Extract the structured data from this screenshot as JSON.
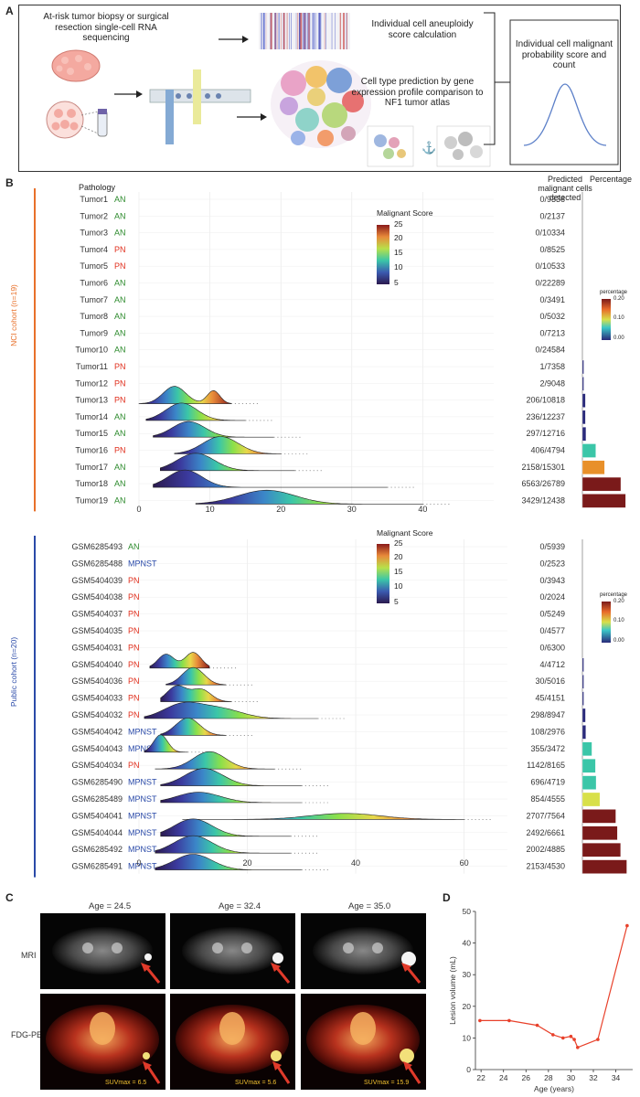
{
  "panels": {
    "a": "A",
    "b": "B",
    "c": "C",
    "d": "D"
  },
  "panelA": {
    "input_text": "At-risk tumor biopsy or surgical resection single-cell RNA sequencing",
    "aneuploidy_text": "Individual cell aneuploidy score calculation",
    "celltype_text": "Cell type prediction by gene expression profile comparison to NF1 tumor atlas",
    "output_text": "Individual cell malignant probability score and count"
  },
  "panelB": {
    "pathology_header": "Pathology",
    "predicted_header": "Predicted malignant cells detected",
    "percentage_header": "Percentage",
    "colorbar_title": "Malignant Score",
    "colorbar_ticks": [
      "25",
      "20",
      "15",
      "10",
      "5"
    ],
    "pct_legend_title": "percentage",
    "pct_legend_ticks": [
      "0.20",
      "0.10",
      "0.00"
    ],
    "nci_cohort_label": "NCI cohort (n=19)",
    "public_cohort_label": "Public cohort (n=20)",
    "nci_xticks": [
      "0",
      "10",
      "20",
      "30",
      "40"
    ],
    "public_xticks": [
      "0",
      "20",
      "40",
      "60"
    ]
  },
  "chart_data": [
    {
      "type": "ridgeline",
      "title": "NCI cohort (n=19)",
      "xlim": [
        0,
        50
      ],
      "xticks": [
        0,
        10,
        20,
        30,
        40
      ],
      "rows": [
        {
          "name": "Tumor1",
          "pathology": "AN",
          "count": "0/9336",
          "percentage": 0,
          "peaks": []
        },
        {
          "name": "Tumor2",
          "pathology": "AN",
          "count": "0/2137",
          "percentage": 0,
          "peaks": []
        },
        {
          "name": "Tumor3",
          "pathology": "AN",
          "count": "0/10334",
          "percentage": 0,
          "peaks": []
        },
        {
          "name": "Tumor4",
          "pathology": "PN",
          "count": "0/8525",
          "percentage": 0,
          "peaks": []
        },
        {
          "name": "Tumor5",
          "pathology": "PN",
          "count": "0/10533",
          "percentage": 0,
          "peaks": []
        },
        {
          "name": "Tumor6",
          "pathology": "AN",
          "count": "0/22289",
          "percentage": 0,
          "peaks": []
        },
        {
          "name": "Tumor7",
          "pathology": "AN",
          "count": "0/3491",
          "percentage": 0,
          "peaks": []
        },
        {
          "name": "Tumor8",
          "pathology": "AN",
          "count": "0/5032",
          "percentage": 0,
          "peaks": []
        },
        {
          "name": "Tumor9",
          "pathology": "AN",
          "count": "0/7213",
          "percentage": 0,
          "peaks": []
        },
        {
          "name": "Tumor10",
          "pathology": "AN",
          "count": "0/24584",
          "percentage": 0,
          "peaks": []
        },
        {
          "name": "Tumor11",
          "pathology": "PN",
          "count": "1/7358",
          "percentage": 0.0001,
          "peaks": []
        },
        {
          "name": "Tumor12",
          "pathology": "PN",
          "count": "2/9048",
          "percentage": 0.0002,
          "peaks": []
        },
        {
          "name": "Tumor13",
          "pathology": "PN",
          "count": "206/10818",
          "percentage": 0.019,
          "peaks": [
            {
              "mu": 5,
              "sd": 1.6,
              "h": 1.0
            },
            {
              "mu": 10.5,
              "sd": 0.9,
              "h": 0.75
            }
          ],
          "span": [
            0,
            13
          ]
        },
        {
          "name": "Tumor14",
          "pathology": "AN",
          "count": "236/12237",
          "percentage": 0.019,
          "peaks": [
            {
              "mu": 6,
              "sd": 2.2,
              "h": 1.0
            }
          ],
          "span": [
            1,
            15
          ]
        },
        {
          "name": "Tumor15",
          "pathology": "AN",
          "count": "297/12716",
          "percentage": 0.023,
          "peaks": [
            {
              "mu": 7,
              "sd": 2.3,
              "h": 0.9
            }
          ],
          "span": [
            2,
            19
          ]
        },
        {
          "name": "Tumor16",
          "pathology": "PN",
          "count": "406/4794",
          "percentage": 0.085,
          "peaks": [
            {
              "mu": 11.5,
              "sd": 2.5,
              "h": 1.0
            }
          ],
          "span": [
            5,
            20
          ]
        },
        {
          "name": "Tumor17",
          "pathology": "AN",
          "count": "2158/15301",
          "percentage": 0.141,
          "peaks": [
            {
              "mu": 8,
              "sd": 2.6,
              "h": 1.0
            }
          ],
          "span": [
            3,
            22
          ]
        },
        {
          "name": "Tumor18",
          "pathology": "AN",
          "count": "6563/26789",
          "percentage": 0.245,
          "peaks": [
            {
              "mu": 6.5,
              "sd": 2.4,
              "h": 1.0
            }
          ],
          "span": [
            2,
            35
          ]
        },
        {
          "name": "Tumor19",
          "pathology": "AN",
          "count": "3429/12438",
          "percentage": 0.276,
          "peaks": [
            {
              "mu": 18,
              "sd": 4,
              "h": 0.8
            }
          ],
          "span": [
            8,
            40
          ]
        }
      ]
    },
    {
      "type": "ridgeline",
      "title": "Public cohort (n=20)",
      "xlim": [
        0,
        68
      ],
      "xticks": [
        0,
        20,
        40,
        60
      ],
      "rows": [
        {
          "name": "GSM6285493",
          "pathology": "AN",
          "count": "0/5939",
          "percentage": 0,
          "peaks": []
        },
        {
          "name": "GSM6285488",
          "pathology": "MPNST",
          "count": "0/2523",
          "percentage": 0,
          "peaks": []
        },
        {
          "name": "GSM5404039",
          "pathology": "PN",
          "count": "0/3943",
          "percentage": 0,
          "peaks": []
        },
        {
          "name": "GSM5404038",
          "pathology": "PN",
          "count": "0/2024",
          "percentage": 0,
          "peaks": []
        },
        {
          "name": "GSM5404037",
          "pathology": "PN",
          "count": "0/5249",
          "percentage": 0,
          "peaks": []
        },
        {
          "name": "GSM5404035",
          "pathology": "PN",
          "count": "0/4577",
          "percentage": 0,
          "peaks": []
        },
        {
          "name": "GSM5404031",
          "pathology": "PN",
          "count": "0/6300",
          "percentage": 0,
          "peaks": []
        },
        {
          "name": "GSM5404040",
          "pathology": "PN",
          "count": "4/4712",
          "percentage": 0.0008,
          "peaks": [
            {
              "mu": 5,
              "sd": 1.5,
              "h": 0.8
            },
            {
              "mu": 10,
              "sd": 1.5,
              "h": 0.9
            }
          ],
          "span": [
            2,
            13
          ]
        },
        {
          "name": "GSM5404036",
          "pathology": "PN",
          "count": "30/5016",
          "percentage": 0.006,
          "peaks": [
            {
              "mu": 10,
              "sd": 2.0,
              "h": 1.0
            }
          ],
          "span": [
            5,
            16
          ]
        },
        {
          "name": "GSM5404033",
          "pathology": "PN",
          "count": "45/4151",
          "percentage": 0.011,
          "peaks": [
            {
              "mu": 7,
              "sd": 1.8,
              "h": 0.9
            },
            {
              "mu": 11.5,
              "sd": 1.8,
              "h": 0.7
            }
          ],
          "span": [
            4,
            17
          ]
        },
        {
          "name": "GSM5404032",
          "pathology": "PN",
          "count": "298/8947",
          "percentage": 0.033,
          "peaks": [
            {
              "mu": 8,
              "sd": 3.5,
              "h": 0.8
            },
            {
              "mu": 15,
              "sd": 4,
              "h": 0.55
            }
          ],
          "span": [
            1,
            33
          ]
        },
        {
          "name": "GSM5404042",
          "pathology": "MPNST",
          "count": "108/2976",
          "percentage": 0.036,
          "peaks": [
            {
              "mu": 9,
              "sd": 2.2,
              "h": 1.0
            }
          ],
          "span": [
            4,
            16
          ]
        },
        {
          "name": "GSM5404043",
          "pathology": "MPNST",
          "count": "355/3472",
          "percentage": 0.102,
          "peaks": [
            {
              "mu": 4,
              "sd": 1.3,
              "h": 1.0
            }
          ],
          "span": [
            1,
            9
          ]
        },
        {
          "name": "GSM5404034",
          "pathology": "PN",
          "count": "1142/8165",
          "percentage": 0.14,
          "peaks": [
            {
              "mu": 13,
              "sd": 3.0,
              "h": 1.0
            }
          ],
          "span": [
            3,
            25
          ]
        },
        {
          "name": "GSM6285490",
          "pathology": "MPNST",
          "count": "696/4719",
          "percentage": 0.147,
          "peaks": [
            {
              "mu": 12,
              "sd": 3.5,
              "h": 1.0
            }
          ],
          "span": [
            4,
            30
          ]
        },
        {
          "name": "GSM6285489",
          "pathology": "MPNST",
          "count": "854/4555",
          "percentage": 0.187,
          "peaks": [
            {
              "mu": 11,
              "sd": 4,
              "h": 0.6
            }
          ],
          "span": [
            4,
            30
          ]
        },
        {
          "name": "GSM5404041",
          "pathology": "MPNST",
          "count": "2707/7564",
          "percentage": 0.358,
          "peaks": [
            {
              "mu": 38,
              "sd": 6.5,
              "h": 0.35
            }
          ],
          "span": [
            8,
            60
          ]
        },
        {
          "name": "GSM5404044",
          "pathology": "MPNST",
          "count": "2492/6661",
          "percentage": 0.374,
          "peaks": [
            {
              "mu": 10,
              "sd": 3.5,
              "h": 1.0
            }
          ],
          "span": [
            4,
            28
          ]
        },
        {
          "name": "GSM6285492",
          "pathology": "MPNST",
          "count": "2002/4885",
          "percentage": 0.41,
          "peaks": [
            {
              "mu": 10,
              "sd": 3.5,
              "h": 1.0
            }
          ],
          "span": [
            3,
            28
          ]
        },
        {
          "name": "GSM6285491",
          "pathology": "MPNST",
          "count": "2153/4530",
          "percentage": 0.475,
          "peaks": [
            {
              "mu": 10,
              "sd": 3.5,
              "h": 0.9
            }
          ],
          "span": [
            3,
            30
          ]
        }
      ]
    },
    {
      "type": "line",
      "title": "",
      "xlabel": "Age (years)",
      "ylabel": "Lesion volume (mL)",
      "xlim": [
        21.5,
        35.5
      ],
      "ylim": [
        0,
        50
      ],
      "xticks": [
        22,
        24,
        26,
        28,
        30,
        32,
        34
      ],
      "yticks": [
        0,
        10,
        20,
        30,
        40,
        50
      ],
      "x": [
        21.9,
        24.5,
        27.0,
        28.4,
        29.3,
        30.0,
        30.3,
        30.6,
        32.4,
        35.0
      ],
      "y": [
        15.5,
        15.5,
        14.0,
        11.0,
        10.0,
        10.5,
        9.5,
        7.0,
        9.5,
        45.5
      ]
    }
  ],
  "panelC": {
    "mri_label": "MRI",
    "pet_label": "FDG-PET",
    "ages": [
      "Age = 24.5",
      "Age = 32.4",
      "Age = 35.0"
    ],
    "suv": [
      "SUVmax = 6.5",
      "SUVmax = 5.6",
      "SUVmax = 15.9"
    ]
  },
  "colors": {
    "an": "#2e8b2e",
    "pn": "#e0301e",
    "mpnst": "#2a4aa8",
    "nci_bar": "#e8702a",
    "public_bar": "#2a4aa8",
    "line": "#e8402a"
  }
}
